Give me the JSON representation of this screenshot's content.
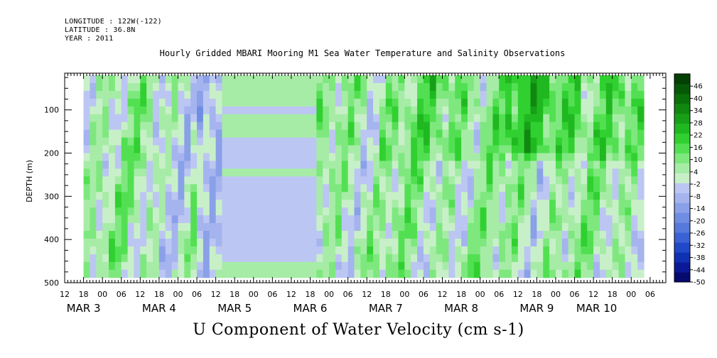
{
  "header": {
    "longitude": "LONGITUDE : 122W(-122)",
    "latitude": "LATITUDE : 36.8N",
    "year": "YEAR : 2011"
  },
  "chart_data": {
    "type": "heatmap",
    "title": "Hourly Gridded MBARI Mooring M1 Sea Water Temperature and Salinity Observations",
    "xlabel": "U Component of Water Velocity (cm s-1)",
    "ylabel": "DEPTH (m)",
    "x_unit": "hours since 2011-03-02 12:00",
    "xlim": [
      0,
      191
    ],
    "data_xlim": [
      6,
      184
    ],
    "ylim": [
      500,
      15
    ],
    "data_ylim": [
      20,
      488
    ],
    "y_ticks": [
      100,
      200,
      300,
      400,
      500
    ],
    "hour_ticks": [
      "12",
      "18",
      "00",
      "06",
      "12",
      "18",
      "00",
      "06",
      "12",
      "18",
      "00",
      "06",
      "12",
      "18",
      "00",
      "06",
      "12",
      "18",
      "00",
      "06",
      "12",
      "18",
      "00",
      "06",
      "12",
      "18",
      "00",
      "06",
      "12",
      "18",
      "00",
      "06"
    ],
    "month_labels": [
      "MAR 3",
      "MAR 4",
      "MAR 5",
      "MAR 6",
      "MAR 7",
      "MAR 8",
      "MAR 9",
      "MAR 10"
    ],
    "colorbar": {
      "range": [
        -50,
        52
      ],
      "labels": [
        "46",
        "40",
        "34",
        "28",
        "22",
        "16",
        "10",
        "4",
        "-2",
        "-8",
        "-14",
        "-20",
        "-26",
        "-32",
        "-38",
        "-44",
        "-50"
      ],
      "colors_low_to_high": [
        "#050a6e",
        "#0a1a96",
        "#1030b4",
        "#1f49c8",
        "#3b62d4",
        "#5679dc",
        "#6f8de2",
        "#8aa0e8",
        "#a5b4ee",
        "#bcc6f2",
        "#c8f0c8",
        "#a6eca6",
        "#7ee87e",
        "#52e052",
        "#30d030",
        "#20b820",
        "#17a017",
        "#108810",
        "#0a700a",
        "#065806",
        "#044004"
      ]
    },
    "missing_data_note": "",
    "series": []
  }
}
